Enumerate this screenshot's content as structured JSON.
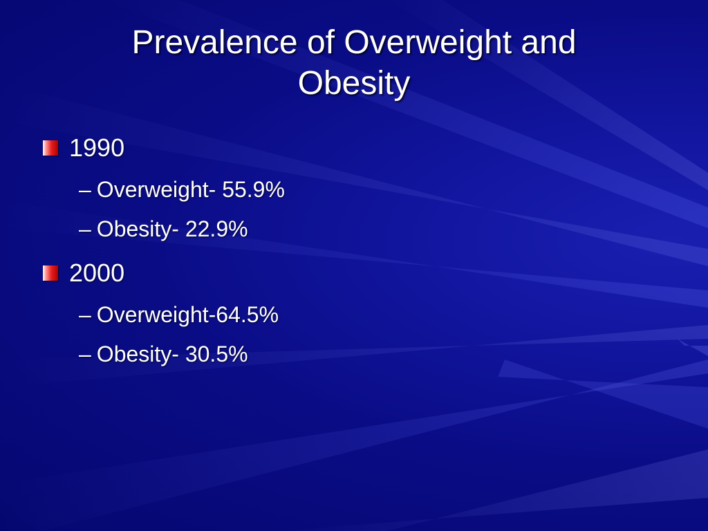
{
  "slide": {
    "title_line1": "Prevalence of Overweight and",
    "title_line2": "Obesity",
    "sections": [
      {
        "year": "1990",
        "items": [
          "Overweight- 55.9%",
          "Obesity- 22.9%"
        ]
      },
      {
        "year": "2000",
        "items": [
          "Overweight-64.5%",
          "Obesity- 30.5%"
        ]
      }
    ],
    "dash_glyph": "–"
  },
  "colors": {
    "background": "#0a0c86",
    "text": "#ffffff",
    "bullet": "#e82020"
  }
}
